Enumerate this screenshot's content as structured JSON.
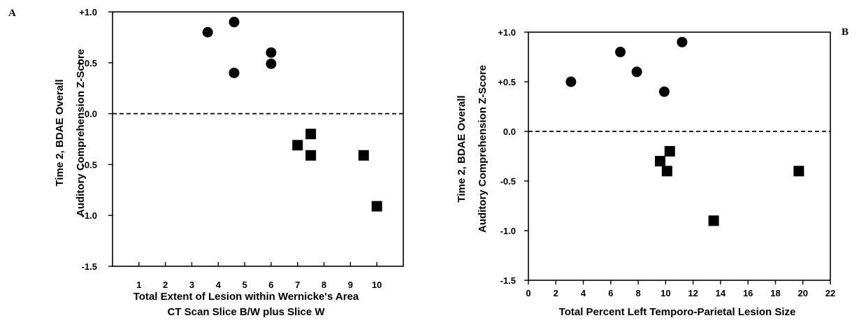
{
  "chart_data": [
    {
      "type": "scatter",
      "panel_label": "A",
      "xlabel": [
        "Total Extent of Lesion within Wernicke's Area",
        "CT Scan Slice B/W plus Slice W"
      ],
      "ylabel": [
        "Time 2, BDAE Overall",
        "Auditory  Comprehension  Z-Score"
      ],
      "x_ticks": [
        "1",
        "2",
        "3",
        "4",
        "5",
        "6",
        "7",
        "8",
        "9",
        "10"
      ],
      "y_ticks": [
        "+1.0",
        "+ 0.5",
        "0.0",
        "-0.5",
        "-1.0",
        "-1.5"
      ],
      "xlim": [
        0,
        11
      ],
      "ylim": [
        -1.5,
        1.0
      ],
      "reference_line": {
        "y": 0,
        "style": "dashed"
      },
      "grid": false,
      "series": [
        {
          "marker": "circle",
          "points": [
            [
              3.6,
              0.8
            ],
            [
              4.6,
              0.9
            ],
            [
              4.6,
              0.4
            ],
            [
              6.0,
              0.6
            ],
            [
              6.0,
              0.49
            ]
          ]
        },
        {
          "marker": "square",
          "points": [
            [
              7.0,
              -0.31
            ],
            [
              7.5,
              -0.2
            ],
            [
              7.5,
              -0.41
            ],
            [
              9.5,
              -0.41
            ],
            [
              10.0,
              -0.91
            ]
          ]
        }
      ]
    },
    {
      "type": "scatter",
      "panel_label": "B",
      "xlabel": [
        "Total Percent Left Temporo-Parietal Lesion Size"
      ],
      "ylabel": [
        "Time 2, BDAE Overall",
        "Auditory  Comprehension  Z-Score"
      ],
      "x_ticks": [
        "0",
        "2",
        "4",
        "6",
        "8",
        "10",
        "12",
        "14",
        "16",
        "18",
        "20",
        "22"
      ],
      "y_ticks": [
        "+1.0",
        "+0.5",
        "0.0",
        "-0.5",
        "-1.0",
        "-1.5"
      ],
      "xlim": [
        0,
        22
      ],
      "ylim": [
        -1.5,
        1.0
      ],
      "reference_line": {
        "y": 0,
        "style": "dashed"
      },
      "grid": false,
      "series": [
        {
          "marker": "circle",
          "points": [
            [
              3.1,
              0.5
            ],
            [
              6.7,
              0.8
            ],
            [
              7.9,
              0.6
            ],
            [
              9.9,
              0.4
            ],
            [
              11.2,
              0.9
            ]
          ]
        },
        {
          "marker": "square",
          "points": [
            [
              9.6,
              -0.3
            ],
            [
              10.1,
              -0.4
            ],
            [
              10.3,
              -0.2
            ],
            [
              13.5,
              -0.9
            ],
            [
              19.7,
              -0.4
            ]
          ]
        }
      ]
    }
  ]
}
